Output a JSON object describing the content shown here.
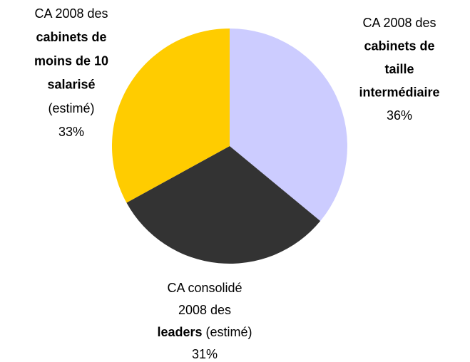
{
  "chart_data": {
    "type": "pie",
    "categories": [
      [
        [
          {
            "text": "CA 2008 des",
            "bold": false
          }
        ],
        [
          {
            "text": "cabinets de",
            "bold": true
          }
        ],
        [
          {
            "text": "taille",
            "bold": true
          }
        ],
        [
          {
            "text": "intermédiaire",
            "bold": true
          }
        ]
      ],
      [
        [
          {
            "text": "CA consolidé",
            "bold": false
          }
        ],
        [
          {
            "text": "2008 des",
            "bold": false
          }
        ],
        [
          {
            "text": "leaders",
            "bold": true
          },
          {
            "text": " (estimé)",
            "bold": false
          }
        ]
      ],
      [
        [
          {
            "text": "CA 2008 des",
            "bold": false
          }
        ],
        [
          {
            "text": "cabinets de",
            "bold": true
          }
        ],
        [
          {
            "text": "moins de 10",
            "bold": true
          }
        ],
        [
          {
            "text": "salarisé",
            "bold": true
          }
        ],
        [
          {
            "text": "(estimé)",
            "bold": false
          }
        ]
      ]
    ],
    "values": [
      36,
      31,
      33
    ],
    "value_labels": [
      "36%",
      "31%",
      "33%"
    ],
    "colors": [
      "#ccccff",
      "#333333",
      "#ffcc00"
    ]
  }
}
